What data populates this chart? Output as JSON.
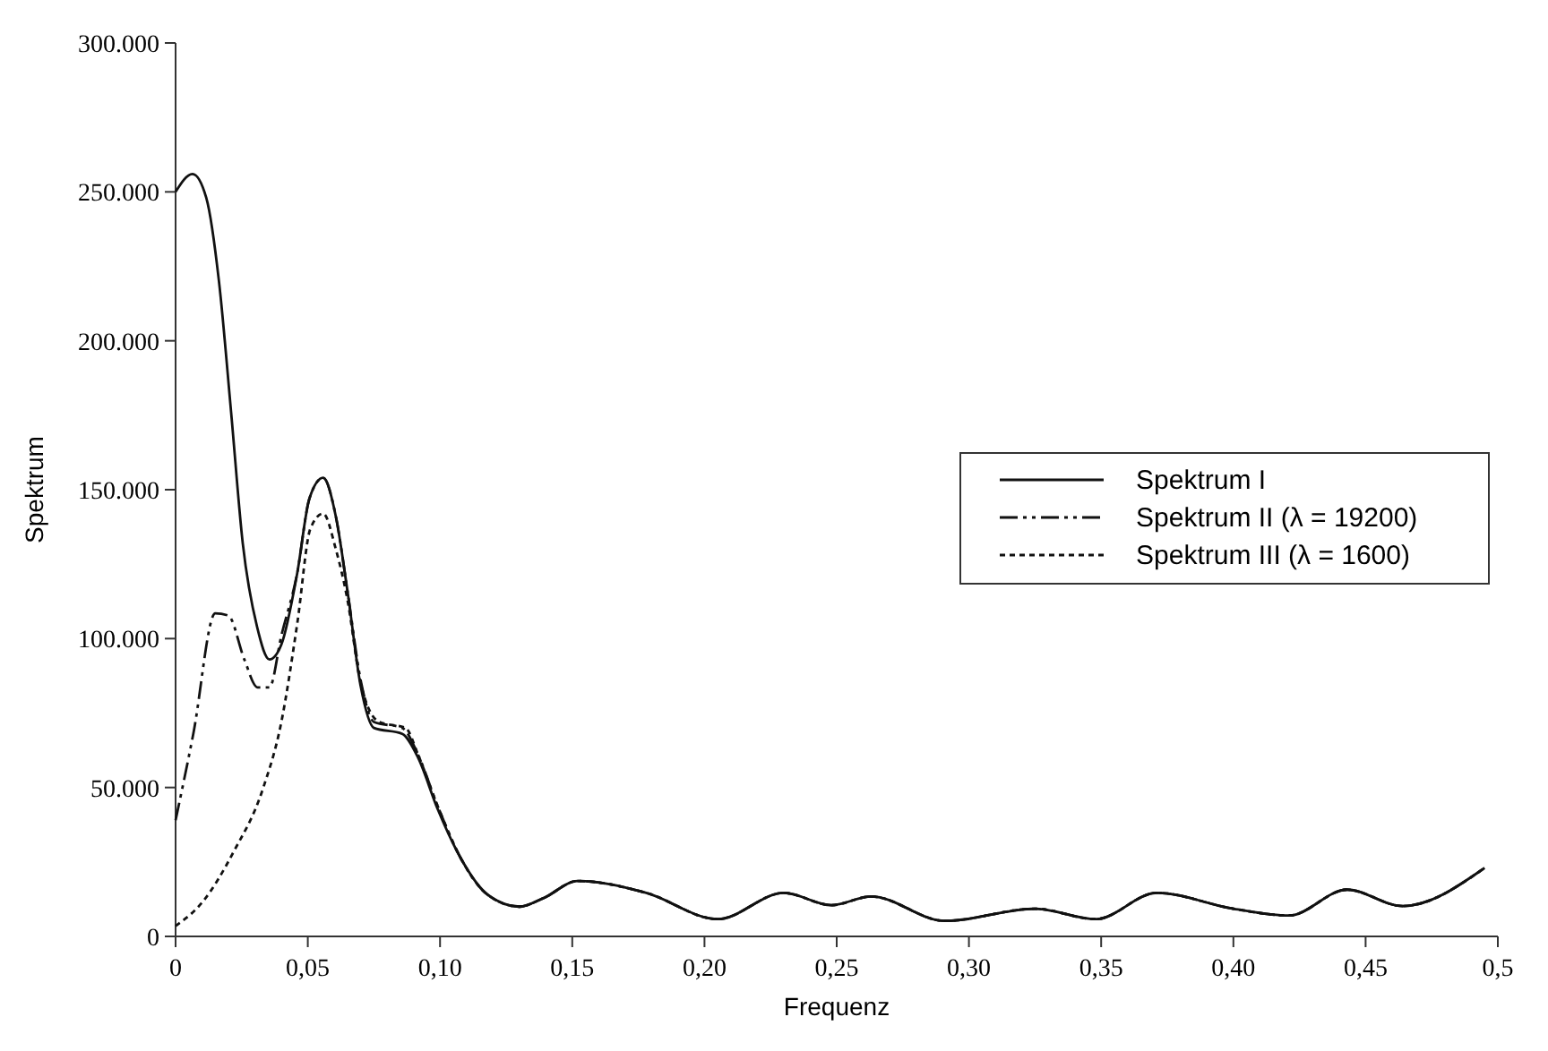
{
  "chart_data": {
    "type": "line",
    "xlabel": "Frequenz",
    "ylabel": "Spektrum",
    "xlim": [
      0,
      0.5
    ],
    "ylim": [
      0,
      300000
    ],
    "xticks": [
      0,
      {
        "value": 0.05,
        "label": "0,05"
      },
      {
        "value": 0.1,
        "label": "0,10"
      },
      {
        "value": 0.15,
        "label": "0,15"
      },
      {
        "value": 0.2,
        "label": "0,20"
      },
      {
        "value": 0.25,
        "label": "0,25"
      },
      {
        "value": 0.3,
        "label": "0,30"
      },
      {
        "value": 0.35,
        "label": "0,35"
      },
      {
        "value": 0.4,
        "label": "0,40"
      },
      {
        "value": 0.45,
        "label": "0,45"
      },
      {
        "value": 0.5,
        "label": "0,5"
      }
    ],
    "yticks": [
      0,
      {
        "value": 50000,
        "label": "50.000"
      },
      {
        "value": 100000,
        "label": "100.000"
      },
      {
        "value": 150000,
        "label": "150.000"
      },
      {
        "value": 200000,
        "label": "200.000"
      },
      {
        "value": 250000,
        "label": "250.000"
      },
      {
        "value": 300000,
        "label": "300.000"
      }
    ],
    "grid": false,
    "legend": "right",
    "marker": "none",
    "series": [
      {
        "name": "Spektrum I",
        "color": "#111111",
        "line_style": "solid",
        "x": [
          0,
          0.0064,
          0.0116,
          0.0164,
          0.021,
          0.0254,
          0.0308,
          0.0355,
          0.04,
          0.046,
          0.0506,
          0.0558,
          0.0606,
          0.065,
          0.07,
          0.075,
          0.0857,
          0.0917,
          0.099,
          0.108,
          0.118,
          0.13,
          0.139,
          0.152,
          0.178,
          0.205,
          0.23,
          0.248,
          0.263,
          0.291,
          0.325,
          0.348,
          0.371,
          0.4,
          0.421,
          0.443,
          0.464,
          0.495
        ],
        "values": [
          250000,
          256000,
          248000,
          220000,
          176000,
          132000,
          104000,
          93000,
          98000,
          122000,
          147000,
          154000,
          141000,
          116000,
          84000,
          70000,
          68000,
          60000,
          43000,
          26000,
          14000,
          10000,
          12800,
          18600,
          14600,
          5800,
          14600,
          10500,
          13400,
          5200,
          9300,
          5800,
          14600,
          9300,
          7000,
          15700,
          10200,
          23000
        ]
      },
      {
        "name": "Spektrum II (λ = 19200)",
        "color": "#111111",
        "line_style": "dashed",
        "x": [
          0,
          0.0067,
          0.015,
          0.02,
          0.026,
          0.031,
          0.0355,
          0.04,
          0.046,
          0.0506,
          0.0558,
          0.0606,
          0.065,
          0.07,
          0.075,
          0.0857,
          0.0917,
          0.099,
          0.108,
          0.118,
          0.13,
          0.139,
          0.152,
          0.178,
          0.205,
          0.23,
          0.248,
          0.263,
          0.291,
          0.325,
          0.348,
          0.371,
          0.4,
          0.421,
          0.443,
          0.464,
          0.495
        ],
        "values": [
          39000,
          68000,
          108500,
          107700,
          93000,
          83600,
          83600,
          101000,
          122000,
          147000,
          154000,
          141000,
          116000,
          86000,
          72000,
          70000,
          61000,
          44000,
          26000,
          14000,
          10000,
          12800,
          18600,
          14600,
          5800,
          14600,
          10500,
          13400,
          5200,
          9300,
          5800,
          14600,
          9300,
          7000,
          15700,
          10200,
          23000
        ]
      },
      {
        "name": "Spektrum III (λ = 1600)",
        "color": "#111111",
        "line_style": "dotted",
        "x": [
          0,
          0.0104,
          0.022,
          0.033,
          0.04,
          0.046,
          0.051,
          0.0558,
          0.0606,
          0.065,
          0.07,
          0.077,
          0.087,
          0.0917,
          0.099,
          0.108,
          0.118,
          0.13,
          0.139,
          0.152,
          0.178,
          0.205,
          0.23,
          0.248,
          0.263,
          0.291,
          0.325,
          0.348,
          0.371,
          0.4,
          0.421,
          0.443,
          0.464,
          0.495
        ],
        "values": [
          3500,
          11800,
          28500,
          49500,
          72000,
          105000,
          137000,
          142000,
          130000,
          113000,
          85000,
          72000,
          70000,
          61000,
          44000,
          26000,
          14000,
          10000,
          12800,
          18600,
          14600,
          5800,
          14600,
          10500,
          13400,
          5200,
          9300,
          5800,
          14600,
          9300,
          7000,
          15700,
          10200,
          23000
        ]
      }
    ]
  }
}
